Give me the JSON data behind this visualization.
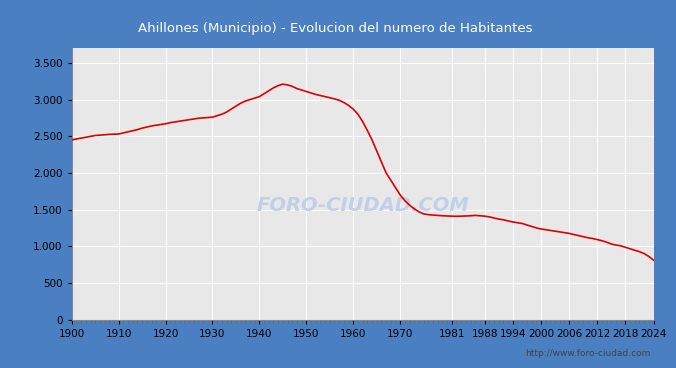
{
  "title": "Ahillones (Municipio) - Evolucion del numero de Habitantes",
  "title_bg_color": "#4a7fc1",
  "title_text_color": "#ffffff",
  "line_color": "#dd0000",
  "bg_color": "#4a7fc1",
  "plot_bg_color": "#e8e8e8",
  "grid_color": "#ffffff",
  "watermark_text": "FORO-CIUDAD.COM",
  "watermark_color": "#c0d0e8",
  "url_text": "http://www.foro-ciudad.com",
  "years": [
    1900,
    1901,
    1902,
    1903,
    1904,
    1905,
    1906,
    1907,
    1908,
    1909,
    1910,
    1911,
    1912,
    1913,
    1914,
    1915,
    1916,
    1917,
    1918,
    1919,
    1920,
    1921,
    1922,
    1923,
    1924,
    1925,
    1926,
    1927,
    1928,
    1929,
    1930,
    1931,
    1932,
    1933,
    1934,
    1935,
    1936,
    1937,
    1938,
    1939,
    1940,
    1941,
    1942,
    1943,
    1944,
    1945,
    1946,
    1947,
    1948,
    1949,
    1950,
    1951,
    1952,
    1953,
    1954,
    1955,
    1956,
    1957,
    1958,
    1959,
    1960,
    1961,
    1962,
    1963,
    1964,
    1965,
    1966,
    1967,
    1968,
    1969,
    1970,
    1971,
    1972,
    1973,
    1974,
    1975,
    1976,
    1977,
    1978,
    1979,
    1980,
    1981,
    1982,
    1983,
    1984,
    1985,
    1986,
    1987,
    1988,
    1989,
    1990,
    1991,
    1992,
    1993,
    1994,
    1995,
    1996,
    1997,
    1998,
    1999,
    2000,
    2001,
    2002,
    2003,
    2004,
    2005,
    2006,
    2007,
    2008,
    2009,
    2010,
    2011,
    2012,
    2013,
    2014,
    2015,
    2016,
    2017,
    2018,
    2019,
    2020,
    2021,
    2022,
    2023,
    2024
  ],
  "population": [
    2450,
    2462,
    2474,
    2486,
    2498,
    2510,
    2515,
    2520,
    2525,
    2528,
    2530,
    2545,
    2560,
    2575,
    2590,
    2610,
    2625,
    2640,
    2650,
    2660,
    2670,
    2685,
    2695,
    2705,
    2715,
    2725,
    2735,
    2745,
    2750,
    2755,
    2760,
    2780,
    2800,
    2830,
    2870,
    2910,
    2950,
    2980,
    3000,
    3020,
    3040,
    3080,
    3120,
    3160,
    3190,
    3210,
    3200,
    3180,
    3150,
    3130,
    3110,
    3090,
    3070,
    3055,
    3040,
    3025,
    3010,
    2990,
    2960,
    2920,
    2870,
    2800,
    2700,
    2580,
    2450,
    2300,
    2150,
    2000,
    1900,
    1800,
    1700,
    1620,
    1560,
    1510,
    1470,
    1440,
    1430,
    1425,
    1420,
    1415,
    1412,
    1410,
    1408,
    1410,
    1412,
    1415,
    1420,
    1415,
    1410,
    1400,
    1385,
    1370,
    1360,
    1345,
    1330,
    1320,
    1310,
    1290,
    1270,
    1250,
    1235,
    1225,
    1215,
    1205,
    1195,
    1185,
    1175,
    1160,
    1145,
    1130,
    1115,
    1105,
    1090,
    1075,
    1055,
    1030,
    1015,
    1005,
    985,
    965,
    945,
    925,
    900,
    860,
    810
  ],
  "xlim": [
    1900,
    2024
  ],
  "ylim": [
    0,
    3700
  ],
  "yticks": [
    0,
    500,
    1000,
    1500,
    2000,
    2500,
    3000,
    3500
  ],
  "ytick_labels": [
    "0",
    "500",
    "1.000",
    "1.500",
    "2.000",
    "2.500",
    "3.000",
    "3.500"
  ],
  "xtick_labels": [
    "1900",
    "1910",
    "1920",
    "1930",
    "1940",
    "1950",
    "1960",
    "1970",
    "1981",
    "1988",
    "1994",
    "2000",
    "2006",
    "2012",
    "2018",
    "2024"
  ],
  "xtick_positions": [
    1900,
    1910,
    1920,
    1930,
    1940,
    1950,
    1960,
    1970,
    1981,
    1988,
    1994,
    2000,
    2006,
    2012,
    2018,
    2024
  ]
}
